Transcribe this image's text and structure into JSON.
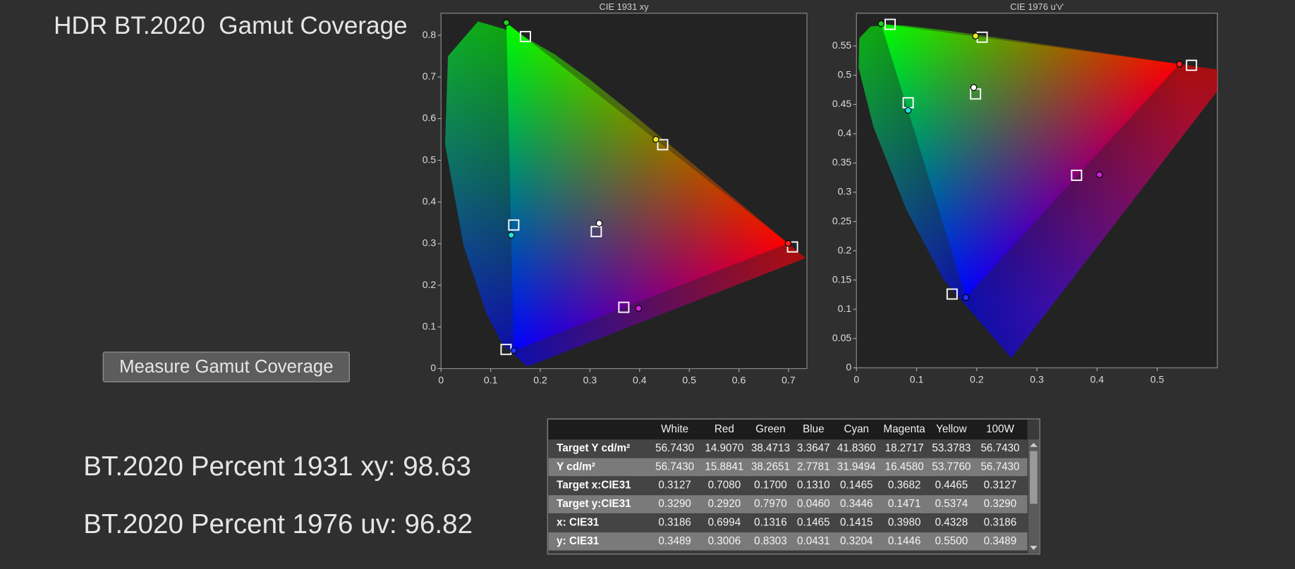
{
  "header": {
    "title": "HDR BT.2020  Gamut Coverage"
  },
  "button": {
    "label": "Measure Gamut Coverage"
  },
  "results": [
    {
      "label": "BT.2020 Percent 1931 xy:",
      "value": "98.63"
    },
    {
      "label": "BT.2020 Percent 1976 uv:",
      "value": "96.82"
    }
  ],
  "chart_data": [
    {
      "type": "scatter",
      "title": "CIE 1931 xy",
      "xlim": [
        0,
        0.737
      ],
      "ylim": [
        0,
        0.853
      ],
      "xticks": [
        0,
        0.1,
        0.2,
        0.3,
        0.4,
        0.5,
        0.6,
        0.7
      ],
      "yticks": [
        0,
        0.1,
        0.2,
        0.3,
        0.4,
        0.5,
        0.6,
        0.7,
        0.8
      ],
      "series": [
        {
          "marker": "square",
          "color": "#ffffff",
          "x": [
            0.3127,
            0.708,
            0.17,
            0.131,
            0.1465,
            0.3682,
            0.4465
          ],
          "values": [
            0.329,
            0.292,
            0.797,
            0.046,
            0.3446,
            0.1471,
            0.5374
          ]
        },
        {
          "marker": "circle",
          "colors": [
            "#ffffff",
            "#ff2020",
            "#20d020",
            "#2030ff",
            "#20e0e0",
            "#d020e0",
            "#e8e820"
          ],
          "x": [
            0.3186,
            0.6994,
            0.1316,
            0.1465,
            0.1415,
            0.398,
            0.4328
          ],
          "values": [
            0.3489,
            0.3006,
            0.8303,
            0.0431,
            0.3204,
            0.1446,
            0.55
          ]
        }
      ]
    },
    {
      "type": "scatter",
      "title": "CIE 1976 u'v'",
      "xlim": [
        0,
        0.6
      ],
      "ylim": [
        0,
        0.606
      ],
      "xticks": [
        0,
        0.1,
        0.2,
        0.3,
        0.4,
        0.5
      ],
      "yticks": [
        0,
        0.05,
        0.1,
        0.15,
        0.2,
        0.25,
        0.3,
        0.35,
        0.4,
        0.45,
        0.5,
        0.55
      ],
      "series": [
        {
          "marker": "square",
          "color": "#ffffff",
          "x": [
            0.198,
            0.557,
            0.056,
            0.159,
            0.086,
            0.366,
            0.209
          ],
          "values": [
            0.468,
            0.517,
            0.587,
            0.126,
            0.453,
            0.329,
            0.565
          ]
        },
        {
          "marker": "circle",
          "colors": [
            "#ffffff",
            "#ff2020",
            "#20d020",
            "#2030ff",
            "#20e0e0",
            "#d020e0",
            "#e8e820"
          ],
          "x": [
            0.195,
            0.537,
            0.041,
            0.182,
            0.086,
            0.404,
            0.198
          ],
          "values": [
            0.479,
            0.519,
            0.588,
            0.12,
            0.44,
            0.33,
            0.567
          ]
        }
      ]
    }
  ],
  "table": {
    "columns": [
      "White",
      "Red",
      "Green",
      "Blue",
      "Cyan",
      "Magenta",
      "Yellow",
      "100W"
    ],
    "rows": [
      {
        "label": "Target Y cd/m²",
        "values": [
          "56.7430",
          "14.9070",
          "38.4713",
          "3.3647",
          "41.8360",
          "18.2717",
          "53.3783",
          "56.7430"
        ]
      },
      {
        "label": "Y cd/m²",
        "values": [
          "56.7430",
          "15.8841",
          "38.2651",
          "2.7781",
          "31.9494",
          "16.4580",
          "53.7760",
          "56.7430"
        ]
      },
      {
        "label": "Target x:CIE31",
        "values": [
          "0.3127",
          "0.7080",
          "0.1700",
          "0.1310",
          "0.1465",
          "0.3682",
          "0.4465",
          "0.3127"
        ]
      },
      {
        "label": "Target y:CIE31",
        "values": [
          "0.3290",
          "0.2920",
          "0.7970",
          "0.0460",
          "0.3446",
          "0.1471",
          "0.5374",
          "0.3290"
        ]
      },
      {
        "label": "x: CIE31",
        "values": [
          "0.3186",
          "0.6994",
          "0.1316",
          "0.1465",
          "0.1415",
          "0.3980",
          "0.4328",
          "0.3186"
        ]
      },
      {
        "label": "y: CIE31",
        "values": [
          "0.3489",
          "0.3006",
          "0.8303",
          "0.0431",
          "0.3204",
          "0.1446",
          "0.5500",
          "0.3489"
        ]
      }
    ]
  }
}
